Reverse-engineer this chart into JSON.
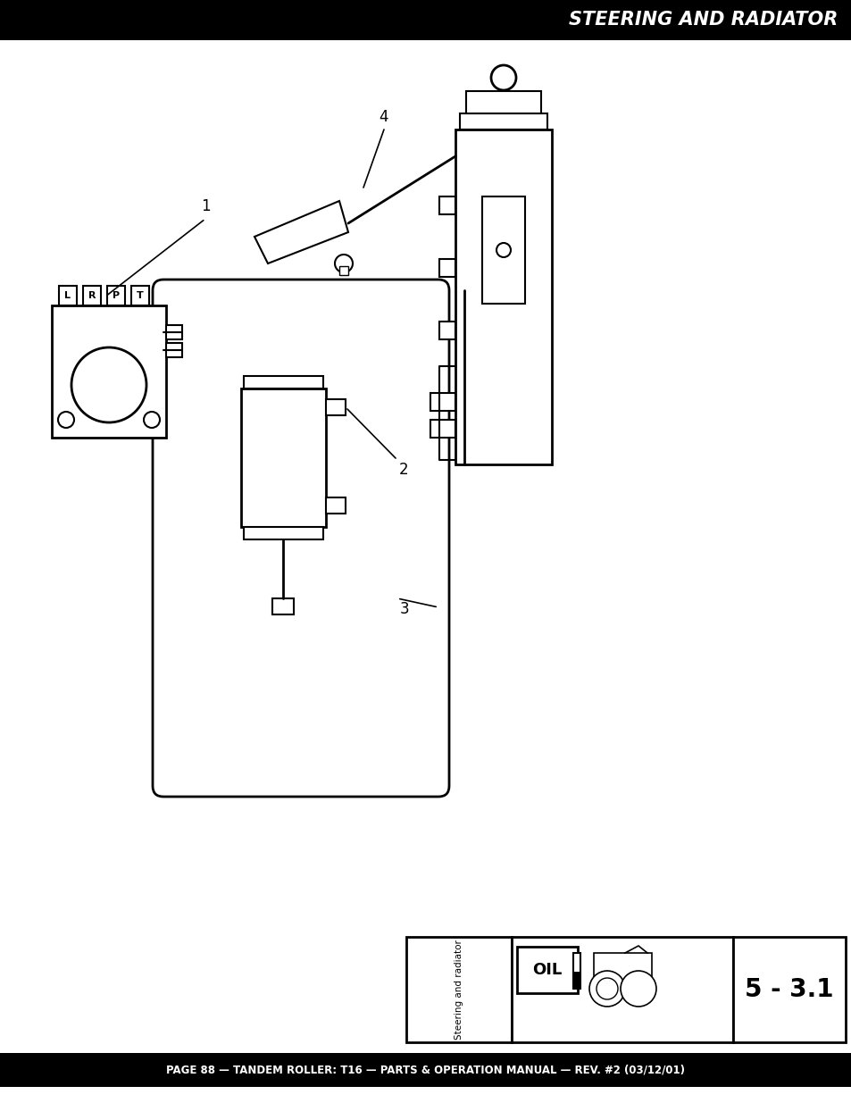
{
  "title": "STEERING AND RADIATOR",
  "footer_text": "PAGE 88 — TANDEM ROLLER: T16 — PARTS & OPERATION MANUAL — REV. #2 (03/12/01)",
  "header_bg": "#000000",
  "header_text_color": "#ffffff",
  "footer_bg": "#000000",
  "footer_text_color": "#ffffff",
  "page_bg": "#ffffff",
  "bottom_label_text": "Steering and radiator",
  "bottom_number": "5 - 3.1"
}
